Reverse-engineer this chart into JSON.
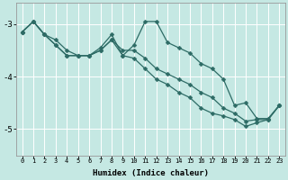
{
  "title": "",
  "xlabel": "Humidex (Indice chaleur)",
  "ylabel": "",
  "background_color": "#c5e8e3",
  "grid_color": "#ffffff",
  "line_color": "#2d6b65",
  "x_ticks": [
    0,
    1,
    2,
    3,
    4,
    5,
    6,
    7,
    8,
    9,
    10,
    11,
    12,
    13,
    14,
    15,
    16,
    17,
    18,
    19,
    20,
    21,
    22,
    23
  ],
  "x_tick_labels": [
    "0",
    "1",
    "2",
    "3",
    "4",
    "5",
    "6",
    "7",
    "8",
    "9",
    "10",
    "11",
    "12",
    "13",
    "14",
    "15",
    "16",
    "17",
    "18",
    "19",
    "20",
    "21",
    "22",
    "23"
  ],
  "y_ticks": [
    -3,
    -4,
    -5
  ],
  "ytick_labels": [
    "-3",
    "-4",
    "-5"
  ],
  "ylim": [
    -5.5,
    -2.6
  ],
  "xlim": [
    -0.5,
    23.5
  ],
  "series_x": [
    0,
    1,
    2,
    3,
    4,
    5,
    6,
    7,
    8,
    9,
    10,
    11,
    12,
    13,
    14,
    15,
    16,
    17,
    18,
    19,
    20,
    21,
    22,
    23
  ],
  "series": [
    [
      -3.15,
      -2.95,
      -3.2,
      -3.3,
      -3.5,
      -3.6,
      -3.6,
      -3.45,
      -3.2,
      -3.6,
      -3.4,
      -2.95,
      -2.95,
      -3.35,
      -3.45,
      -3.55,
      -3.75,
      -3.85,
      -4.05,
      -4.55,
      -4.5,
      -4.8,
      -4.8,
      -4.55
    ],
    [
      -3.15,
      -2.95,
      -3.2,
      -3.4,
      -3.6,
      -3.6,
      -3.6,
      -3.5,
      -3.3,
      -3.5,
      -3.5,
      -3.65,
      -3.85,
      -3.95,
      -4.05,
      -4.15,
      -4.3,
      -4.4,
      -4.6,
      -4.7,
      -4.85,
      -4.82,
      -4.82,
      -4.55
    ],
    [
      -3.15,
      -2.95,
      -3.2,
      -3.4,
      -3.6,
      -3.6,
      -3.6,
      -3.5,
      -3.3,
      -3.6,
      -3.65,
      -3.85,
      -4.05,
      -4.15,
      -4.3,
      -4.4,
      -4.6,
      -4.7,
      -4.75,
      -4.82,
      -4.95,
      -4.88,
      -4.82,
      -4.55
    ]
  ],
  "marker": "D",
  "marker_size": 2.5,
  "line_width": 0.9,
  "figsize": [
    3.2,
    2.0
  ],
  "dpi": 100
}
